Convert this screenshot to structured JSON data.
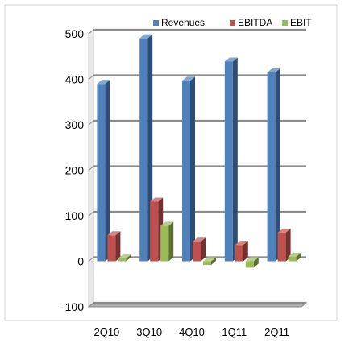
{
  "chart_data": {
    "type": "bar",
    "categories": [
      "2Q10",
      "3Q10",
      "4Q10",
      "1Q11",
      "2Q11"
    ],
    "series": [
      {
        "name": "Revenues",
        "values": [
          390,
          490,
          397,
          439,
          415
        ],
        "color": "#4f81bd"
      },
      {
        "name": "EBITDA",
        "values": [
          57,
          131,
          43,
          36,
          63
        ],
        "color": "#c0504d"
      },
      {
        "name": "EBIT",
        "values": [
          6,
          78,
          -8,
          -14,
          10
        ],
        "color": "#9bbb59"
      }
    ],
    "title": "",
    "xlabel": "",
    "ylabel": "",
    "ylim": [
      -100,
      500
    ],
    "yticks": [
      -100,
      0,
      100,
      200,
      300,
      400,
      500
    ],
    "grid": true,
    "legend_position": "top",
    "three_d": true
  }
}
